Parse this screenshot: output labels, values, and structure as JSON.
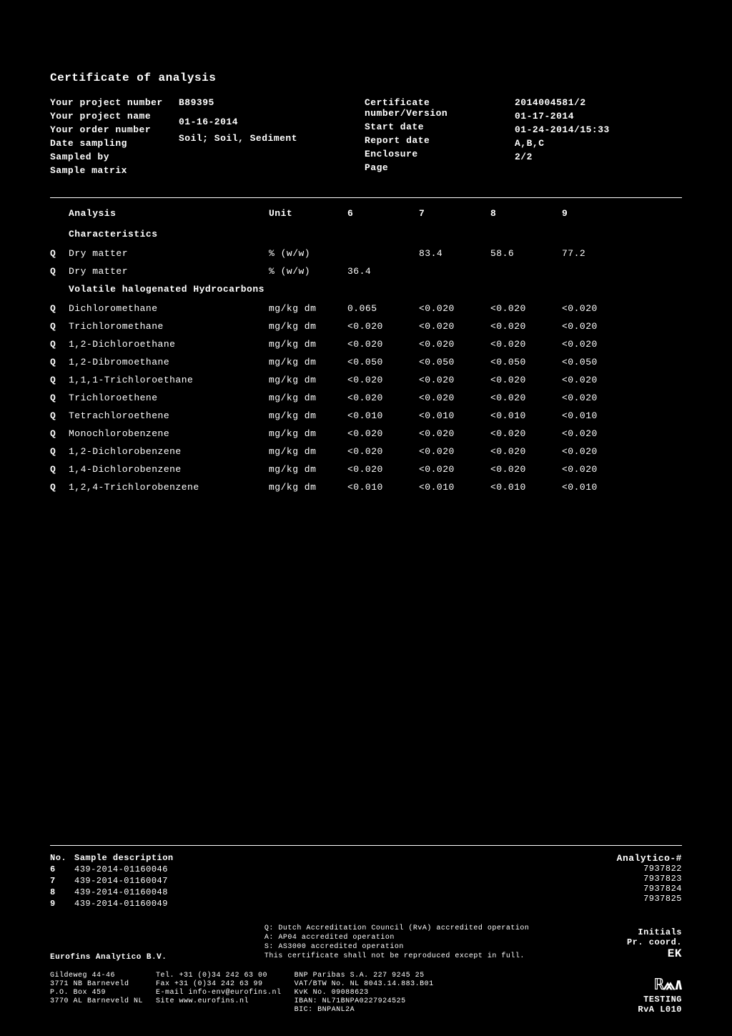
{
  "title": "Certificate of analysis",
  "meta": {
    "left_labels": [
      "Your project number",
      "Your project name",
      "Your order number",
      "Date sampling",
      "Sampled by",
      "Sample matrix"
    ],
    "left_values": [
      "B89395",
      "",
      "",
      "01-16-2014",
      "",
      "Soil; Soil, Sediment"
    ],
    "right_labels": [
      "Certificate number/Version",
      "Start date",
      "Report date",
      "Enclosure",
      "Page"
    ],
    "right_values": [
      "2014004581/2",
      "01-17-2014",
      "01-24-2014/15:33",
      "A,B,C",
      "2/2"
    ]
  },
  "table": {
    "header": {
      "analysis": "Analysis",
      "unit": "Unit",
      "c6": "6",
      "c7": "7",
      "c8": "8",
      "c9": "9"
    },
    "section1": "Characteristics",
    "rows1": [
      {
        "q": "Q",
        "name": "Dry matter",
        "unit": "% (w/w)",
        "v6": "",
        "v7": "83.4",
        "v8": "58.6",
        "v9": "77.2"
      },
      {
        "q": "Q",
        "name": "Dry matter",
        "unit": "% (w/w)",
        "v6": "36.4",
        "v7": "",
        "v8": "",
        "v9": ""
      }
    ],
    "section2": "Volatile halogenated Hydrocarbons",
    "rows2": [
      {
        "q": "Q",
        "name": "Dichloromethane",
        "unit": "mg/kg dm",
        "v6": "0.065",
        "v7": "<0.020",
        "v8": "<0.020",
        "v9": "<0.020"
      },
      {
        "q": "Q",
        "name": "Trichloromethane",
        "unit": "mg/kg dm",
        "v6": "<0.020",
        "v7": "<0.020",
        "v8": "<0.020",
        "v9": "<0.020"
      },
      {
        "q": "Q",
        "name": "1,2-Dichloroethane",
        "unit": "mg/kg dm",
        "v6": "<0.020",
        "v7": "<0.020",
        "v8": "<0.020",
        "v9": "<0.020"
      },
      {
        "q": "Q",
        "name": "1,2-Dibromoethane",
        "unit": "mg/kg dm",
        "v6": "<0.050",
        "v7": "<0.050",
        "v8": "<0.050",
        "v9": "<0.050"
      },
      {
        "q": "Q",
        "name": "1,1,1-Trichloroethane",
        "unit": "mg/kg dm",
        "v6": "<0.020",
        "v7": "<0.020",
        "v8": "<0.020",
        "v9": "<0.020"
      },
      {
        "q": "Q",
        "name": "Trichloroethene",
        "unit": "mg/kg dm",
        "v6": "<0.020",
        "v7": "<0.020",
        "v8": "<0.020",
        "v9": "<0.020"
      },
      {
        "q": "Q",
        "name": "Tetrachloroethene",
        "unit": "mg/kg dm",
        "v6": "<0.010",
        "v7": "<0.010",
        "v8": "<0.010",
        "v9": "<0.010"
      },
      {
        "q": "Q",
        "name": "Monochlorobenzene",
        "unit": "mg/kg dm",
        "v6": "<0.020",
        "v7": "<0.020",
        "v8": "<0.020",
        "v9": "<0.020"
      },
      {
        "q": "Q",
        "name": "1,2-Dichlorobenzene",
        "unit": "mg/kg dm",
        "v6": "<0.020",
        "v7": "<0.020",
        "v8": "<0.020",
        "v9": "<0.020"
      },
      {
        "q": "Q",
        "name": "1,4-Dichlorobenzene",
        "unit": "mg/kg dm",
        "v6": "<0.020",
        "v7": "<0.020",
        "v8": "<0.020",
        "v9": "<0.020"
      },
      {
        "q": "Q",
        "name": "1,2,4-Trichlorobenzene",
        "unit": "mg/kg dm",
        "v6": "<0.010",
        "v7": "<0.010",
        "v8": "<0.010",
        "v9": "<0.010"
      }
    ]
  },
  "samples": {
    "header_no": "No.",
    "header_desc": "Sample description",
    "header_analytico": "Analytico-#",
    "rows": [
      {
        "no": "6",
        "desc": "439-2014-01160046",
        "an": "7937822"
      },
      {
        "no": "7",
        "desc": "439-2014-01160047",
        "an": "7937823"
      },
      {
        "no": "8",
        "desc": "439-2014-01160048",
        "an": "7937824"
      },
      {
        "no": "9",
        "desc": "439-2014-01160049",
        "an": "7937825"
      }
    ]
  },
  "accred": {
    "company": "Eurofins Analytico B.V.",
    "lines": [
      "Q: Dutch Accreditation Council (RvA) accredited operation",
      "A: AP04 accredited operation",
      "S: AS3000 accredited operation",
      "This certificate shall not be reproduced except in full."
    ],
    "initials_label": "Initials",
    "prcoord_label": "Pr. coord.",
    "ek": "EK"
  },
  "company": {
    "col1": [
      "Gildeweg 44-46",
      "3771 NB Barneveld",
      "P.O. Box 459",
      "3770 AL Barneveld NL"
    ],
    "col2": [
      "Tel. +31 (0)34 242 63 00",
      "Fax +31 (0)34 242 63 99",
      "E-mail info-env@eurofins.nl",
      "Site www.eurofins.nl"
    ],
    "col3": [
      "BNP Paribas S.A. 227 9245 25",
      "VAT/BTW No. NL 8043.14.883.B01",
      "KvK No. 09088623",
      "IBAN: NL71BNPA0227924525",
      "BIC: BNPANL2A"
    ],
    "logo_testing": "TESTING",
    "logo_rva": "RvA L010"
  }
}
